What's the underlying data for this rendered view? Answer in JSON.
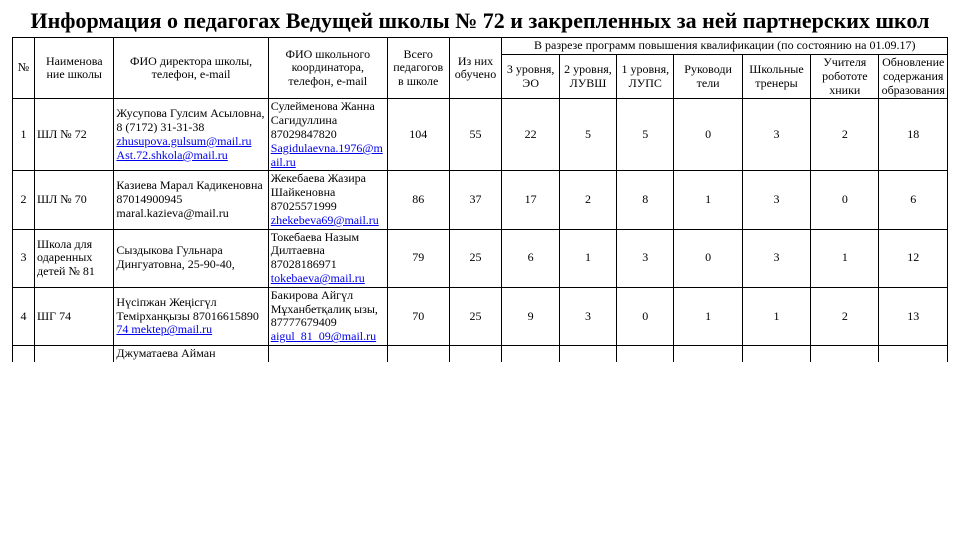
{
  "title": "Информация о педагогах Ведущей школы № 72 и закрепленных  за ней партнерских школ",
  "headers": {
    "no": "№",
    "school": "Наименова ние школы",
    "director": "ФИО директора школы, телефон, e-mail",
    "coordinator": "ФИО школьного координатора, телефон, e-mail",
    "total": "Всего педагогов в школе",
    "trained": "Из них обучено",
    "group_title": "В разрезе программ повышения квалификации (по состоянию на 01.09.17)",
    "g3": "3 уровня, ЭО",
    "g2": "2 уровня, ЛУВШ",
    "g1": "1 уровня, ЛУПС",
    "lead": "Руководи тели",
    "train": "Школьные тренеры",
    "robot": "Учителя робототе хники",
    "upd": "Обновление содержания образования"
  },
  "rows": [
    {
      "n": "1",
      "school": "ШЛ № 72",
      "dir_pre": "Жусупова Гулсим Асыловна, 8 (7172) 31-31-38",
      "dir_links": [
        "zhusupova.gulsum@mail.ru",
        "Ast.72.shkola@mail.ru"
      ],
      "dir_post": "",
      "coord_pre": "Сулейменова Жанна Сагидуллина 87029847820",
      "coord_links": [
        "Sagidulaevna.1976@mail.ru"
      ],
      "total": "104",
      "trained": "55",
      "g3": "22",
      "g2": "5",
      "g1": "5",
      "lead": "0",
      "train": "3",
      "robot": "2",
      "upd": "18"
    },
    {
      "n": "2",
      "school": "ШЛ № 70",
      "dir_pre": "Казиева Марал Кадикеновна 87014900945 maral.kazieva@mail.ru",
      "dir_links": [],
      "dir_post": "",
      "coord_pre": "Жекебаева Жазира Шайкеновна 87025571999",
      "coord_links": [
        "zhekebeva69@mail.ru"
      ],
      "total": "86",
      "trained": "37",
      "g3": "17",
      "g2": "2",
      "g1": "8",
      "lead": "1",
      "train": "3",
      "robot": "0",
      "upd": "6"
    },
    {
      "n": "3",
      "school": "Школа для одаренных детей № 81",
      "dir_pre": "Сыздыкова Гульнара Дингуатовна, 25-90-40,",
      "dir_links": [],
      "dir_post": "",
      "coord_pre": "Токебаева Назым Дилтаевна 87028186971",
      "coord_links": [
        "tokebaeva@mail.ru"
      ],
      "total": "79",
      "trained": "25",
      "g3": "6",
      "g2": "1",
      "g1": "3",
      "lead": "0",
      "train": "3",
      "robot": "1",
      "upd": "12"
    },
    {
      "n": "4",
      "school": "ШГ 74",
      "dir_pre": "Нүсіпжан Жеңісгүл Темірханқызы 87016615890",
      "dir_links": [
        "74 mektep@mail.ru"
      ],
      "dir_post": "",
      "coord_pre": "Бакирова Айгүл Мұханбетқалиқ ызы, 87777679409",
      "coord_links": [
        "aigul_81_09@mail.ru"
      ],
      "total": "70",
      "trained": "25",
      "g3": "9",
      "g2": "3",
      "g1": "0",
      "lead": "1",
      "train": "1",
      "robot": "2",
      "upd": "13"
    }
  ],
  "tail": {
    "dir_pre": "Джуматаева Айман"
  }
}
